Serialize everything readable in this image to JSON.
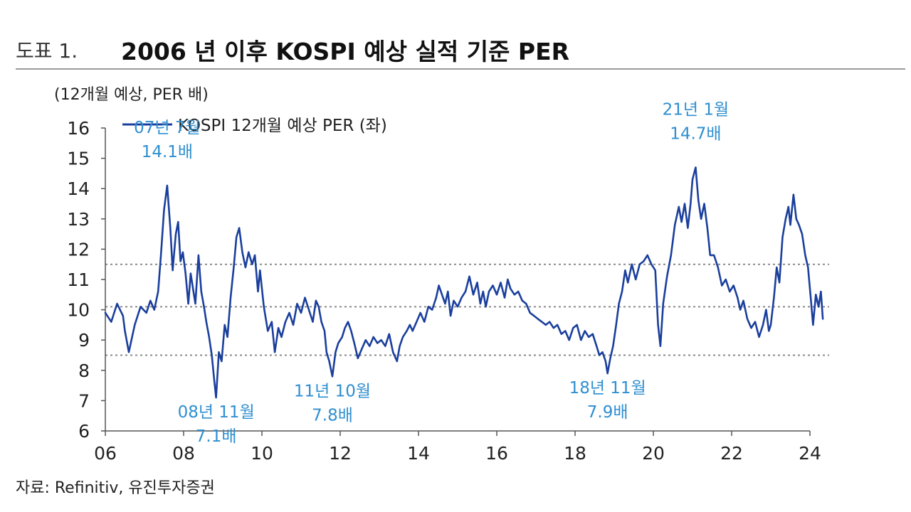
{
  "figure": {
    "label": "도표 1.",
    "title": "2006 년 이후 KOSPI 예상 실적 기준 PER",
    "source": "자료: Refinitiv, 유진투자증권"
  },
  "chart_data": {
    "type": "line",
    "unit_label": "(12개월 예상, PER 배)",
    "ylim": [
      6,
      16
    ],
    "y_ticks": [
      "6",
      "7",
      "8",
      "9",
      "10",
      "11",
      "12",
      "13",
      "14",
      "15",
      "16"
    ],
    "xlim": [
      2006,
      2024
    ],
    "x_ticks": [
      "06",
      "08",
      "10",
      "12",
      "14",
      "16",
      "18",
      "20",
      "22",
      "24"
    ],
    "reference_lines": [
      8.5,
      10.1,
      11.5
    ],
    "colors": {
      "series": "#1a3f9c",
      "annotation": "#2f8fd0",
      "reference": "#8a8a8a",
      "axis": "#555555"
    },
    "series": [
      {
        "name": "KOSPI 12개월 예상 PER (좌)",
        "points": [
          [
            2006.0,
            9.9
          ],
          [
            2006.15,
            9.6
          ],
          [
            2006.3,
            10.2
          ],
          [
            2006.45,
            9.8
          ],
          [
            2006.5,
            9.3
          ],
          [
            2006.6,
            8.6
          ],
          [
            2006.75,
            9.5
          ],
          [
            2006.9,
            10.1
          ],
          [
            2007.05,
            9.9
          ],
          [
            2007.15,
            10.3
          ],
          [
            2007.25,
            10.0
          ],
          [
            2007.35,
            10.6
          ],
          [
            2007.42,
            11.8
          ],
          [
            2007.5,
            13.3
          ],
          [
            2007.58,
            14.1
          ],
          [
            2007.66,
            12.7
          ],
          [
            2007.72,
            11.3
          ],
          [
            2007.8,
            12.5
          ],
          [
            2007.86,
            12.9
          ],
          [
            2007.92,
            11.6
          ],
          [
            2007.98,
            11.9
          ],
          [
            2008.05,
            11.2
          ],
          [
            2008.12,
            10.2
          ],
          [
            2008.18,
            11.2
          ],
          [
            2008.25,
            10.6
          ],
          [
            2008.3,
            10.2
          ],
          [
            2008.38,
            11.8
          ],
          [
            2008.45,
            10.6
          ],
          [
            2008.52,
            10.1
          ],
          [
            2008.58,
            9.6
          ],
          [
            2008.65,
            9.1
          ],
          [
            2008.72,
            8.5
          ],
          [
            2008.78,
            7.7
          ],
          [
            2008.83,
            7.1
          ],
          [
            2008.9,
            8.6
          ],
          [
            2008.97,
            8.3
          ],
          [
            2009.05,
            9.5
          ],
          [
            2009.12,
            9.1
          ],
          [
            2009.2,
            10.4
          ],
          [
            2009.28,
            11.4
          ],
          [
            2009.35,
            12.4
          ],
          [
            2009.42,
            12.7
          ],
          [
            2009.5,
            11.9
          ],
          [
            2009.58,
            11.4
          ],
          [
            2009.66,
            11.9
          ],
          [
            2009.75,
            11.5
          ],
          [
            2009.82,
            11.8
          ],
          [
            2009.9,
            10.6
          ],
          [
            2009.95,
            11.3
          ],
          [
            2010.05,
            10.1
          ],
          [
            2010.15,
            9.3
          ],
          [
            2010.25,
            9.6
          ],
          [
            2010.33,
            8.6
          ],
          [
            2010.42,
            9.4
          ],
          [
            2010.5,
            9.1
          ],
          [
            2010.6,
            9.6
          ],
          [
            2010.7,
            9.9
          ],
          [
            2010.8,
            9.5
          ],
          [
            2010.9,
            10.2
          ],
          [
            2011.0,
            9.9
          ],
          [
            2011.1,
            10.4
          ],
          [
            2011.2,
            10.0
          ],
          [
            2011.3,
            9.6
          ],
          [
            2011.38,
            10.3
          ],
          [
            2011.45,
            10.1
          ],
          [
            2011.52,
            9.6
          ],
          [
            2011.6,
            9.3
          ],
          [
            2011.65,
            8.6
          ],
          [
            2011.72,
            8.3
          ],
          [
            2011.8,
            7.8
          ],
          [
            2011.88,
            8.6
          ],
          [
            2011.95,
            8.9
          ],
          [
            2012.05,
            9.1
          ],
          [
            2012.12,
            9.4
          ],
          [
            2012.2,
            9.6
          ],
          [
            2012.28,
            9.3
          ],
          [
            2012.36,
            8.9
          ],
          [
            2012.45,
            8.4
          ],
          [
            2012.55,
            8.7
          ],
          [
            2012.65,
            9.0
          ],
          [
            2012.75,
            8.8
          ],
          [
            2012.85,
            9.1
          ],
          [
            2012.95,
            8.9
          ],
          [
            2013.05,
            9.0
          ],
          [
            2013.15,
            8.8
          ],
          [
            2013.25,
            9.2
          ],
          [
            2013.35,
            8.6
          ],
          [
            2013.45,
            8.3
          ],
          [
            2013.52,
            8.8
          ],
          [
            2013.6,
            9.1
          ],
          [
            2013.7,
            9.3
          ],
          [
            2013.78,
            9.5
          ],
          [
            2013.85,
            9.3
          ],
          [
            2013.95,
            9.6
          ],
          [
            2014.05,
            9.9
          ],
          [
            2014.15,
            9.6
          ],
          [
            2014.25,
            10.1
          ],
          [
            2014.35,
            10.0
          ],
          [
            2014.45,
            10.4
          ],
          [
            2014.52,
            10.8
          ],
          [
            2014.6,
            10.5
          ],
          [
            2014.68,
            10.2
          ],
          [
            2014.75,
            10.6
          ],
          [
            2014.82,
            9.8
          ],
          [
            2014.9,
            10.3
          ],
          [
            2015.0,
            10.1
          ],
          [
            2015.1,
            10.4
          ],
          [
            2015.2,
            10.6
          ],
          [
            2015.3,
            11.1
          ],
          [
            2015.4,
            10.5
          ],
          [
            2015.5,
            10.9
          ],
          [
            2015.58,
            10.2
          ],
          [
            2015.65,
            10.6
          ],
          [
            2015.72,
            10.1
          ],
          [
            2015.8,
            10.6
          ],
          [
            2015.9,
            10.8
          ],
          [
            2016.0,
            10.5
          ],
          [
            2016.1,
            10.9
          ],
          [
            2016.2,
            10.4
          ],
          [
            2016.28,
            11.0
          ],
          [
            2016.35,
            10.7
          ],
          [
            2016.45,
            10.5
          ],
          [
            2016.55,
            10.6
          ],
          [
            2016.65,
            10.3
          ],
          [
            2016.75,
            10.2
          ],
          [
            2016.85,
            9.9
          ],
          [
            2016.95,
            9.8
          ],
          [
            2017.05,
            9.7
          ],
          [
            2017.15,
            9.6
          ],
          [
            2017.25,
            9.5
          ],
          [
            2017.35,
            9.6
          ],
          [
            2017.45,
            9.4
          ],
          [
            2017.55,
            9.5
          ],
          [
            2017.65,
            9.2
          ],
          [
            2017.75,
            9.3
          ],
          [
            2017.85,
            9.0
          ],
          [
            2017.95,
            9.4
          ],
          [
            2018.05,
            9.5
          ],
          [
            2018.15,
            9.0
          ],
          [
            2018.25,
            9.3
          ],
          [
            2018.35,
            9.1
          ],
          [
            2018.45,
            9.2
          ],
          [
            2018.55,
            8.8
          ],
          [
            2018.62,
            8.5
          ],
          [
            2018.7,
            8.6
          ],
          [
            2018.78,
            8.3
          ],
          [
            2018.83,
            7.9
          ],
          [
            2018.9,
            8.4
          ],
          [
            2018.97,
            8.8
          ],
          [
            2019.05,
            9.5
          ],
          [
            2019.12,
            10.2
          ],
          [
            2019.2,
            10.6
          ],
          [
            2019.28,
            11.3
          ],
          [
            2019.35,
            10.9
          ],
          [
            2019.45,
            11.5
          ],
          [
            2019.55,
            11.0
          ],
          [
            2019.65,
            11.5
          ],
          [
            2019.75,
            11.6
          ],
          [
            2019.85,
            11.8
          ],
          [
            2019.95,
            11.5
          ],
          [
            2020.05,
            11.3
          ],
          [
            2020.12,
            9.5
          ],
          [
            2020.18,
            8.8
          ],
          [
            2020.25,
            10.2
          ],
          [
            2020.35,
            11.1
          ],
          [
            2020.45,
            11.8
          ],
          [
            2020.55,
            12.8
          ],
          [
            2020.65,
            13.4
          ],
          [
            2020.72,
            12.9
          ],
          [
            2020.8,
            13.5
          ],
          [
            2020.88,
            12.7
          ],
          [
            2020.95,
            13.5
          ],
          [
            2021.0,
            14.3
          ],
          [
            2021.08,
            14.7
          ],
          [
            2021.15,
            13.6
          ],
          [
            2021.22,
            13.0
          ],
          [
            2021.3,
            13.5
          ],
          [
            2021.38,
            12.7
          ],
          [
            2021.45,
            11.8
          ],
          [
            2021.55,
            11.8
          ],
          [
            2021.65,
            11.4
          ],
          [
            2021.75,
            10.8
          ],
          [
            2021.85,
            11.0
          ],
          [
            2021.95,
            10.6
          ],
          [
            2022.05,
            10.8
          ],
          [
            2022.15,
            10.4
          ],
          [
            2022.22,
            10.0
          ],
          [
            2022.3,
            10.3
          ],
          [
            2022.4,
            9.7
          ],
          [
            2022.5,
            9.4
          ],
          [
            2022.6,
            9.6
          ],
          [
            2022.7,
            9.1
          ],
          [
            2022.8,
            9.5
          ],
          [
            2022.88,
            10.0
          ],
          [
            2022.95,
            9.3
          ],
          [
            2023.0,
            9.5
          ],
          [
            2023.08,
            10.4
          ],
          [
            2023.15,
            11.4
          ],
          [
            2023.22,
            10.9
          ],
          [
            2023.3,
            12.4
          ],
          [
            2023.38,
            13.0
          ],
          [
            2023.45,
            13.4
          ],
          [
            2023.5,
            12.8
          ],
          [
            2023.58,
            13.8
          ],
          [
            2023.65,
            13.0
          ],
          [
            2023.72,
            12.8
          ],
          [
            2023.8,
            12.5
          ],
          [
            2023.88,
            11.8
          ],
          [
            2023.95,
            11.4
          ],
          [
            2024.02,
            10.4
          ],
          [
            2024.08,
            9.5
          ],
          [
            2024.15,
            10.5
          ],
          [
            2024.22,
            10.1
          ],
          [
            2024.28,
            10.6
          ],
          [
            2024.33,
            9.7
          ]
        ]
      }
    ],
    "annotations": [
      {
        "lines": [
          "07년 7월",
          "14.1배"
        ],
        "x": 2007.58,
        "y": 14.1,
        "side": "above"
      },
      {
        "lines": [
          "08년 11월",
          "7.1배"
        ],
        "x": 2008.83,
        "y": 7.1,
        "side": "below"
      },
      {
        "lines": [
          "11년 10월",
          "7.8배"
        ],
        "x": 2011.8,
        "y": 7.8,
        "side": "below"
      },
      {
        "lines": [
          "18년 11월",
          "7.9배"
        ],
        "x": 2018.83,
        "y": 7.9,
        "side": "below"
      },
      {
        "lines": [
          "21년 1월",
          "14.7배"
        ],
        "x": 2021.08,
        "y": 14.7,
        "side": "above"
      }
    ],
    "legend_position": "top-left",
    "grid": false
  }
}
